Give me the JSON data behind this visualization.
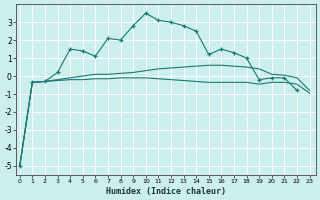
{
  "xlabel": "Humidex (Indice chaleur)",
  "bg_color": "#cceeed",
  "grid_color": "#ffffff",
  "line_color": "#1a7a6e",
  "x": [
    0,
    1,
    2,
    3,
    4,
    5,
    6,
    7,
    8,
    9,
    10,
    11,
    12,
    13,
    14,
    15,
    16,
    17,
    18,
    19,
    20,
    21,
    22,
    23
  ],
  "series1": [
    -5.0,
    -0.35,
    -0.3,
    0.2,
    1.5,
    1.4,
    1.1,
    2.1,
    2.0,
    2.8,
    3.5,
    3.1,
    3.0,
    2.8,
    2.5,
    1.2,
    1.5,
    1.3,
    1.0,
    -0.2,
    -0.1,
    -0.1,
    -0.8,
    null
  ],
  "series2": [
    -5.0,
    -0.35,
    -0.3,
    -0.2,
    -0.1,
    0.0,
    0.1,
    0.1,
    0.15,
    0.2,
    0.3,
    0.4,
    0.45,
    0.5,
    0.55,
    0.6,
    0.6,
    0.55,
    0.5,
    0.4,
    0.1,
    0.05,
    -0.1,
    -0.8
  ],
  "series3": [
    -5.0,
    -0.35,
    -0.3,
    -0.25,
    -0.2,
    -0.2,
    -0.15,
    -0.15,
    -0.1,
    -0.1,
    -0.1,
    -0.15,
    -0.2,
    -0.25,
    -0.3,
    -0.35,
    -0.35,
    -0.35,
    -0.35,
    -0.45,
    -0.35,
    -0.35,
    -0.45,
    -0.95
  ],
  "ylim": [
    -5.5,
    4.0
  ],
  "yticks": [
    -5,
    -4,
    -3,
    -2,
    -1,
    0,
    1,
    2,
    3
  ],
  "xlim": [
    -0.3,
    23.5
  ],
  "xticks": [
    0,
    1,
    2,
    3,
    4,
    5,
    6,
    7,
    8,
    9,
    10,
    11,
    12,
    13,
    14,
    15,
    16,
    17,
    18,
    19,
    20,
    21,
    22,
    23
  ]
}
